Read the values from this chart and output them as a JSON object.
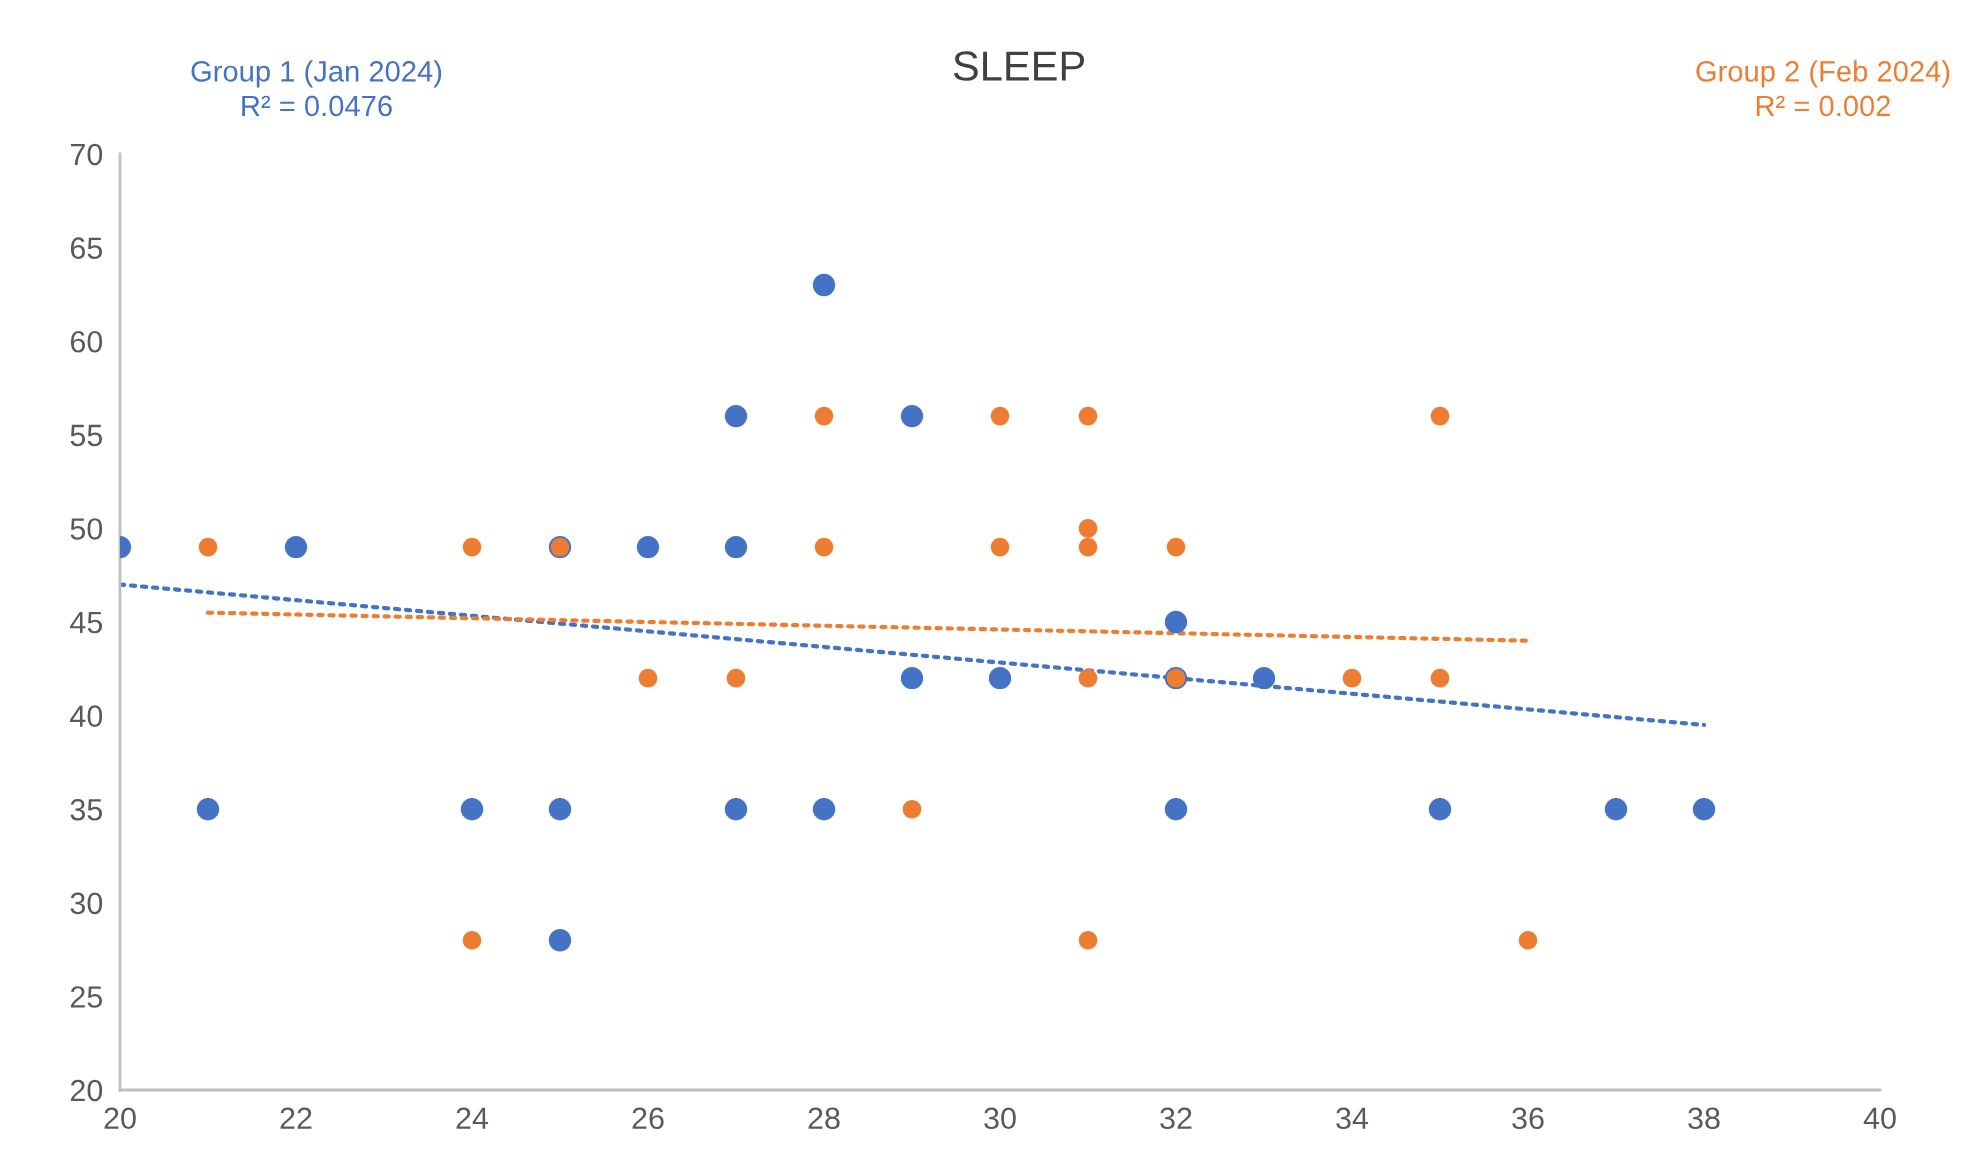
{
  "chart_data": {
    "type": "scatter",
    "title": "SLEEP",
    "xlim": [
      20,
      40
    ],
    "xticks": [
      20,
      22,
      24,
      26,
      28,
      30,
      32,
      34,
      36,
      38,
      40
    ],
    "ylim": [
      20,
      70
    ],
    "yticks": [
      20,
      25,
      30,
      35,
      40,
      45,
      50,
      55,
      60,
      65,
      70
    ],
    "grid": false,
    "legend": false,
    "marker": "circle",
    "annotations": [
      "R² = 0.0476",
      "R² = 0.002"
    ],
    "series": [
      {
        "name": "Group 1 (Jan 2024)",
        "color": "#4472c4",
        "x": [
          20,
          21,
          22,
          24,
          25,
          25,
          25,
          26,
          27,
          27,
          27,
          28,
          28,
          29,
          29,
          30,
          32,
          32,
          32,
          33,
          35,
          37,
          38
        ],
        "values": [
          49,
          35,
          49,
          35,
          49,
          35,
          28,
          49,
          56,
          49,
          35,
          63,
          35,
          56,
          42,
          42,
          45,
          42,
          35,
          42,
          35,
          35,
          35
        ]
      },
      {
        "name": "Group 2 (Feb 2024)",
        "color": "#ed7d31",
        "x": [
          21,
          24,
          24,
          25,
          26,
          27,
          28,
          28,
          29,
          30,
          30,
          31,
          31,
          31,
          31,
          31,
          32,
          32,
          34,
          35,
          35,
          36
        ],
        "values": [
          49,
          49,
          28,
          49,
          42,
          42,
          56,
          49,
          35,
          56,
          49,
          56,
          50,
          49,
          42,
          28,
          49,
          42,
          42,
          56,
          42,
          28
        ]
      },
      {
        "type": "line",
        "line_style": "dotted",
        "marker": "none",
        "color": "#4472c4",
        "x": [
          20,
          38
        ],
        "values": [
          47,
          39.5
        ]
      },
      {
        "type": "line",
        "line_style": "dotted",
        "marker": "none",
        "color": "#ed7d31",
        "x": [
          21,
          36
        ],
        "values": [
          45.5,
          44
        ]
      }
    ]
  }
}
